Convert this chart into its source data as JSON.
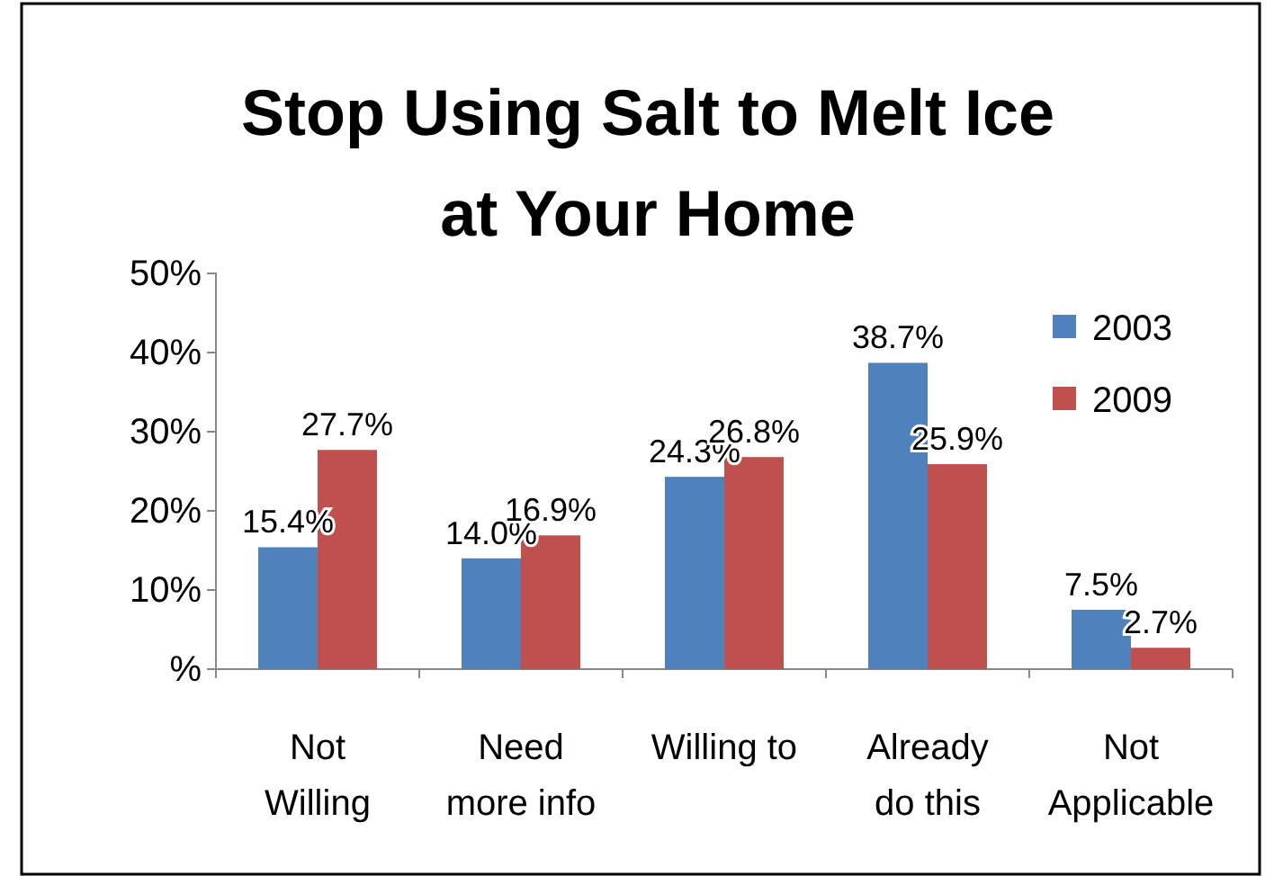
{
  "chart_data": {
    "type": "bar",
    "title": "Stop Using Salt to Melt Ice\nat Your Home",
    "categories": [
      "Not\nWilling",
      "Need\nmore info",
      "Willing to",
      "Already\ndo this",
      "Not\nApplicable"
    ],
    "series": [
      {
        "name": "2003",
        "color": "#4f81bd",
        "values": [
          15.4,
          14.0,
          24.3,
          38.7,
          7.5
        ],
        "value_labels": [
          "15.4%",
          "14.0%",
          "24.3%",
          "38.7%",
          "7.5%"
        ]
      },
      {
        "name": "2009",
        "color": "#c0504d",
        "values": [
          27.7,
          16.9,
          26.8,
          25.9,
          2.7
        ],
        "value_labels": [
          "27.7%",
          "16.9%",
          "26.8%",
          "25.9%",
          "2.7%"
        ]
      }
    ],
    "ylim": [
      0,
      50
    ],
    "yticks": [
      {
        "value": 0,
        "label": "%"
      },
      {
        "value": 10,
        "label": "10%"
      },
      {
        "value": 20,
        "label": "20%"
      },
      {
        "value": 30,
        "label": "30%"
      },
      {
        "value": 40,
        "label": "40%"
      },
      {
        "value": 50,
        "label": "50%"
      }
    ],
    "grid": false,
    "legend": "top right"
  }
}
